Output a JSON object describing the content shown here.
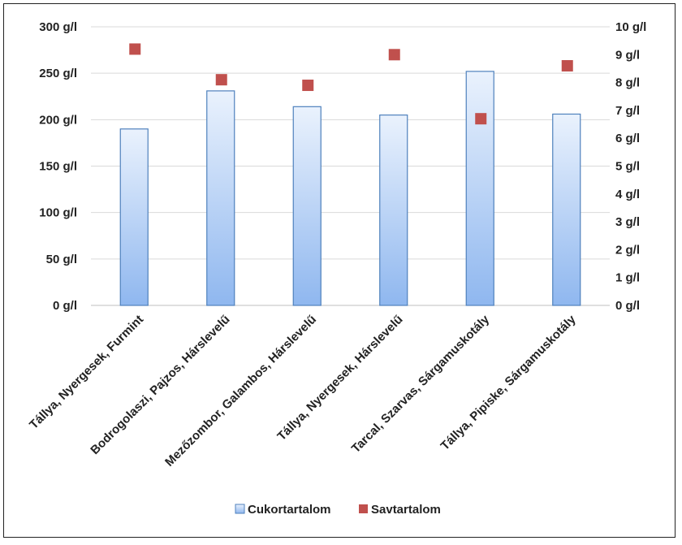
{
  "chart_data": {
    "type": "bar",
    "categories": [
      "Tállya, Nyergesek, Furmint",
      "Bodrogolaszi, Pajzos, Hárslevelű",
      "Mezőzombor, Galambos, Hárslevelű",
      "Tállya, Nyergesek, Hárslevelű",
      "Tarcal, Szarvas, Sárgamuskotály",
      "Tállya, Pipiske, Sárgamuskotály"
    ],
    "series": [
      {
        "name": "Cukortartalom",
        "kind": "bar",
        "axis": "left",
        "values": [
          190,
          231,
          214,
          205,
          252,
          206
        ],
        "color": "#9ec4f5"
      },
      {
        "name": "Savtartalom",
        "kind": "scatter",
        "axis": "right",
        "values": [
          9.2,
          8.1,
          7.9,
          9.0,
          6.7,
          8.6
        ],
        "color": "#c0504d"
      }
    ],
    "y_left": {
      "ylim": [
        0,
        300
      ],
      "ticks": [
        0,
        50,
        100,
        150,
        200,
        250,
        300
      ],
      "tick_labels": [
        "0 g/l",
        "50 g/l",
        "100 g/l",
        "150 g/l",
        "200 g/l",
        "250 g/l",
        "300 g/l"
      ]
    },
    "y_right": {
      "ylim": [
        0,
        10
      ],
      "ticks": [
        0,
        1,
        2,
        3,
        4,
        5,
        6,
        7,
        8,
        9,
        10
      ],
      "tick_labels": [
        "0 g/l",
        "1 g/l",
        "2 g/l",
        "3 g/l",
        "4 g/l",
        "5 g/l",
        "6 g/l",
        "7 g/l",
        "8 g/l",
        "9 g/l",
        "10 g/l"
      ]
    },
    "grid": true,
    "legend": "bottom"
  }
}
